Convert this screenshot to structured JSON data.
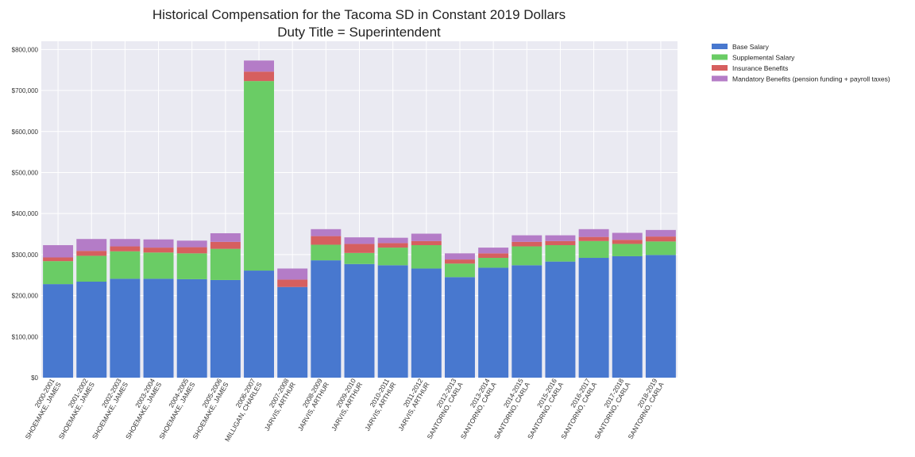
{
  "chart_data": {
    "type": "bar",
    "stacked": true,
    "title": "Historical Compensation for the Tacoma SD in Constant 2019 Dollars",
    "subtitle": "Duty Title = Superintendent",
    "xlabel": "",
    "ylabel": "",
    "ylim": [
      0,
      820000
    ],
    "yticks": [
      0,
      100000,
      200000,
      300000,
      400000,
      500000,
      600000,
      700000,
      800000
    ],
    "ytick_labels": [
      "$0",
      "$100,000",
      "$200,000",
      "$300,000",
      "$400,000",
      "$500,000",
      "$600,000",
      "$700,000",
      "$800,000"
    ],
    "grid": true,
    "legend_position": "outside right, top",
    "categories": [
      [
        "2000-2001",
        "SHOEMAKE, JAMES"
      ],
      [
        "2001-2002",
        "SHOEMAKE, JAMES"
      ],
      [
        "2002-2003",
        "SHOEMAKE, JAMES"
      ],
      [
        "2003-2004",
        "SHOEMAKE, JAMES"
      ],
      [
        "2004-2005",
        "SHOEMAKE, JAMES"
      ],
      [
        "2005-2006",
        "SHOEMAKE, JAMES"
      ],
      [
        "2006-2007",
        "MILLIGAN, CHARLES"
      ],
      [
        "2007-2008",
        "JARVIS, ARTHUR"
      ],
      [
        "2008-2009",
        "JARVIS, ARTHUR"
      ],
      [
        "2009-2010",
        "JARVIS, ARTHUR"
      ],
      [
        "2010-2011",
        "JARVIS, ARTHUR"
      ],
      [
        "2011-2012",
        "JARVIS, ARTHUR"
      ],
      [
        "2012-2013",
        "SANTORNO, CARLA"
      ],
      [
        "2013-2014",
        "SANTORNO, CARLA"
      ],
      [
        "2014-2015",
        "SANTORNO, CARLA"
      ],
      [
        "2015-2016",
        "SANTORNO, CARLA"
      ],
      [
        "2016-2017",
        "SANTORNO, CARLA"
      ],
      [
        "2017-2018",
        "SANTORNO, CARLA"
      ],
      [
        "2018-2019",
        "SANTORNO, CARLA"
      ]
    ],
    "series": [
      {
        "name": "Base Salary",
        "color": "#4878cf",
        "values": [
          228000,
          234000,
          241000,
          241000,
          240000,
          238000,
          261000,
          221000,
          286000,
          277000,
          274000,
          266000,
          245000,
          268000,
          274000,
          283000,
          292000,
          296000,
          299000
        ]
      },
      {
        "name": "Supplemental Salary",
        "color": "#6acc65",
        "values": [
          56000,
          63000,
          67000,
          64000,
          63000,
          76000,
          462000,
          0,
          38000,
          27000,
          43000,
          57000,
          33000,
          24000,
          46000,
          40000,
          41000,
          30000,
          33000
        ]
      },
      {
        "name": "Insurance Benefits",
        "color": "#d65f5f",
        "values": [
          9000,
          12000,
          12000,
          12000,
          15000,
          17000,
          23000,
          18000,
          21000,
          22000,
          11000,
          10000,
          10000,
          11000,
          11000,
          10000,
          10000,
          10000,
          12000
        ]
      },
      {
        "name": "Mandatory Benefits (pension funding + payroll taxes)",
        "color": "#b47cc7",
        "values": [
          30000,
          29000,
          18000,
          20000,
          16000,
          21000,
          27000,
          27000,
          17000,
          16000,
          13000,
          18000,
          15000,
          14000,
          16000,
          14000,
          19000,
          17000,
          16000
        ]
      }
    ]
  }
}
